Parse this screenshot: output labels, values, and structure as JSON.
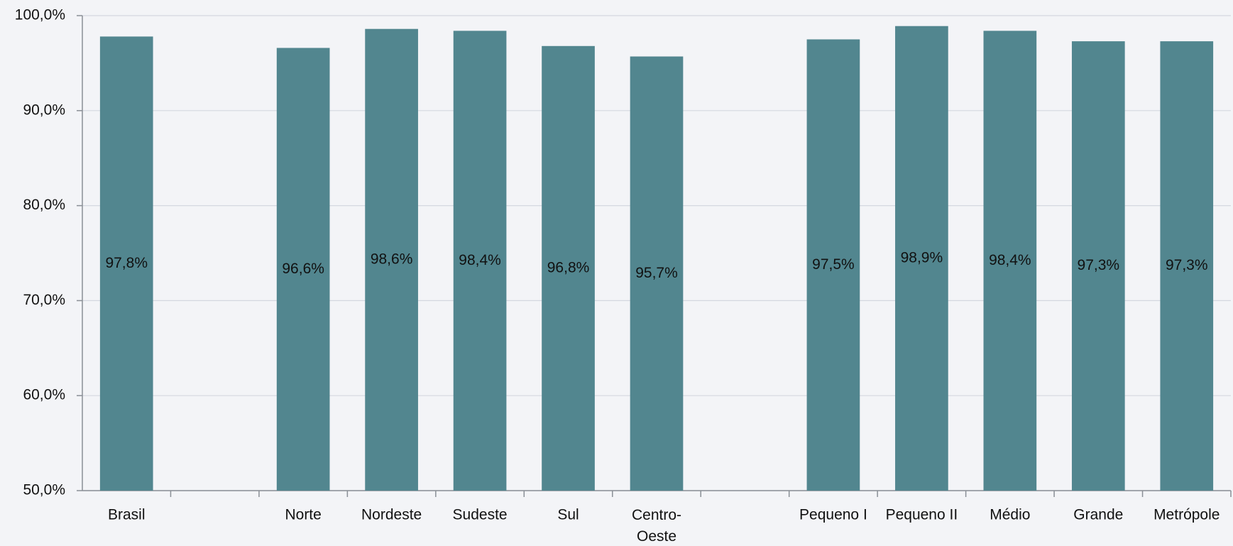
{
  "chart_data": {
    "type": "bar",
    "categories": [
      "Brasil",
      null,
      "Norte",
      "Nordeste",
      "Sudeste",
      "Sul",
      "Centro-Oeste",
      null,
      "Pequeno I",
      "Pequeno II",
      "Médio",
      "Grande",
      "Metrópole"
    ],
    "values": [
      97.8,
      null,
      96.6,
      98.6,
      98.4,
      96.8,
      95.7,
      null,
      97.5,
      98.9,
      98.4,
      97.3,
      97.3
    ],
    "value_labels": [
      "97,8%",
      null,
      "96,6%",
      "98,6%",
      "98,4%",
      "96,8%",
      "95,7%",
      null,
      "97,5%",
      "98,9%",
      "98,4%",
      "97,3%",
      "97,3%"
    ],
    "color": "#52868f",
    "ylim": [
      50,
      100
    ],
    "yticks": [
      {
        "value": 50,
        "label": "50,0%"
      },
      {
        "value": 60,
        "label": "60,0%"
      },
      {
        "value": 70,
        "label": "70,0%"
      },
      {
        "value": 80,
        "label": "80,0%"
      },
      {
        "value": 90,
        "label": "90,0%"
      },
      {
        "value": 100,
        "label": "100,0%"
      }
    ],
    "grid": true
  }
}
